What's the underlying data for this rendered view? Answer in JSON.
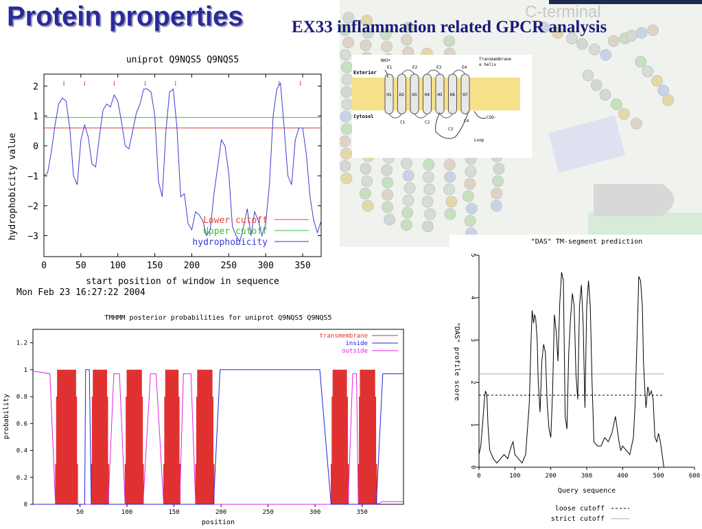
{
  "slide": {
    "title": "Protein properties",
    "subtitle": "EX33 inflammation related GPCR analysis"
  },
  "colors": {
    "title": "#2a2a9c",
    "subtitle": "#1a1a7a",
    "lower_cutoff": "#e04040",
    "upper_cutoff": "#30c030",
    "hydrophobicity": "#3a3ad0",
    "transmembrane": "#e03030",
    "inside": "#2020e0",
    "outside": "#e020e0"
  },
  "background": {
    "diagram_labels": [
      "NH3+",
      "E1",
      "E2",
      "E3",
      "E4",
      "Transmembrane",
      "α helix",
      "Exterior",
      "Cytosol",
      "H1",
      "H2",
      "H3",
      "H4",
      "H5",
      "H6",
      "H7",
      "C1",
      "C2",
      "C3",
      "C4",
      "COO-",
      "Loop"
    ],
    "faded_label": "C-terminal"
  },
  "chart_data": [
    {
      "type": "line",
      "title": "uniprot Q9NQS5 Q9NQS5",
      "xlabel": "start position of window in sequence",
      "ylabel": "hydrophobicity value",
      "xlim": [
        0,
        375
      ],
      "ylim": [
        -3.7,
        2.4
      ],
      "xticks": [
        "0",
        "50",
        "100",
        "150",
        "200",
        "250",
        "300",
        "350"
      ],
      "yticks": [
        "2",
        "1",
        "0",
        "−1",
        "−2",
        "−3"
      ],
      "footer": "Mon Feb 23 16:27:22 2004",
      "legend": [
        "Lower cutoff",
        "Upper cutoff",
        "hydrophobicity"
      ],
      "legend_position": "bottom-right",
      "cutoffs": {
        "lower": 0.6,
        "upper": 0.95
      },
      "tm_markers_x": [
        27,
        55,
        95,
        137,
        178,
        318,
        347
      ],
      "series": [
        {
          "name": "hydrophobicity",
          "x": [
            0,
            5,
            10,
            15,
            20,
            25,
            30,
            35,
            40,
            45,
            50,
            55,
            60,
            65,
            70,
            75,
            80,
            85,
            90,
            95,
            100,
            105,
            110,
            115,
            120,
            125,
            130,
            135,
            140,
            145,
            150,
            155,
            160,
            165,
            170,
            175,
            180,
            185,
            190,
            195,
            200,
            205,
            210,
            215,
            220,
            225,
            230,
            235,
            240,
            245,
            250,
            255,
            260,
            265,
            270,
            275,
            280,
            285,
            290,
            295,
            300,
            305,
            310,
            315,
            320,
            325,
            330,
            335,
            340,
            345,
            350,
            355,
            360,
            365,
            370,
            375
          ],
          "y": [
            -1.0,
            -0.9,
            -0.2,
            0.7,
            1.4,
            1.6,
            1.5,
            0.6,
            -1.0,
            -1.3,
            0.2,
            0.7,
            0.3,
            -0.6,
            -0.7,
            0.3,
            1.2,
            1.4,
            1.3,
            1.7,
            1.5,
            0.8,
            0.0,
            -0.1,
            0.5,
            1.1,
            1.4,
            1.9,
            1.9,
            1.8,
            1.0,
            -1.2,
            -1.7,
            0.5,
            1.8,
            1.9,
            0.6,
            -1.7,
            -1.6,
            -2.6,
            -2.8,
            -2.2,
            -2.3,
            -2.5,
            -3.0,
            -2.8,
            -1.6,
            -0.7,
            0.2,
            0.0,
            -0.9,
            -2.7,
            -3.0,
            -3.2,
            -2.7,
            -2.1,
            -3.0,
            -2.2,
            -2.5,
            -3.0,
            -2.6,
            -1.3,
            1.0,
            1.9,
            2.1,
            0.6,
            -1.0,
            -1.3,
            0.2,
            0.6,
            0.6,
            -0.3,
            -1.7,
            -2.5,
            -2.9,
            -2.5
          ]
        }
      ]
    },
    {
      "type": "line",
      "title": "TMHMM posterior probabilities for uniprot Q9NQS5 Q9NQS5",
      "xlabel": "position",
      "ylabel": "probability",
      "xlim": [
        0,
        394
      ],
      "ylim": [
        0,
        1.3
      ],
      "xticks": [
        "50",
        "100",
        "150",
        "200",
        "250",
        "300",
        "350"
      ],
      "yticks": [
        "0",
        "0.2",
        "0.4",
        "0.6",
        "0.8",
        "1",
        "1.2"
      ],
      "legend": [
        "transmembrane",
        "inside",
        "outside"
      ],
      "legend_position": "top-right",
      "tm_segments": [
        [
          24,
          47
        ],
        [
          62,
          80
        ],
        [
          98,
          117
        ],
        [
          139,
          156
        ],
        [
          173,
          192
        ],
        [
          317,
          335
        ],
        [
          346,
          365
        ]
      ],
      "inside_x": [
        0,
        18,
        24,
        47,
        55,
        56,
        60,
        62,
        80,
        86,
        92,
        98,
        117,
        125,
        131,
        139,
        156,
        160,
        168,
        173,
        192,
        199,
        305,
        317,
        335,
        340,
        344,
        346,
        365,
        372,
        394
      ],
      "inside_y": [
        0,
        0,
        0,
        0,
        0,
        1,
        1,
        0,
        0,
        0,
        0,
        0,
        0,
        0,
        0,
        0,
        0,
        0,
        0,
        0,
        0,
        1,
        1,
        0,
        0,
        0,
        0,
        0,
        0,
        0.97,
        0.97
      ],
      "outside_x": [
        0,
        18,
        24,
        47,
        55,
        56,
        60,
        62,
        80,
        86,
        92,
        98,
        117,
        125,
        131,
        139,
        156,
        160,
        168,
        173,
        192,
        199,
        305,
        317,
        335,
        340,
        344,
        346,
        365,
        372,
        394
      ],
      "outside_y": [
        0.99,
        0.97,
        0,
        0,
        0,
        0,
        0,
        0,
        0,
        0.97,
        0.97,
        0,
        0,
        0.97,
        0.97,
        0,
        0,
        0.97,
        0.97,
        0,
        0,
        0,
        0,
        0,
        0,
        0.97,
        0.97,
        0,
        0,
        0.02,
        0.02
      ]
    },
    {
      "type": "line",
      "title": "\"DAS\" TM-segment prediction",
      "xlabel": "Query sequence",
      "ylabel": "\"DAS\" profile score",
      "xlim": [
        0,
        600
      ],
      "ylim": [
        0,
        5
      ],
      "xticks": [
        "0",
        "100",
        "200",
        "300",
        "400",
        "500",
        "600"
      ],
      "yticks": [
        "0",
        "1",
        "2",
        "3",
        "4",
        "5"
      ],
      "legend": [
        "loose cutoff",
        "strict cutoff"
      ],
      "legend_position": "bottom",
      "cutoffs": {
        "loose": 1.7,
        "strict": 2.2
      },
      "series": [
        {
          "name": "DAS profile score",
          "x": [
            0,
            5,
            10,
            15,
            18,
            22,
            25,
            30,
            40,
            50,
            60,
            70,
            80,
            90,
            95,
            100,
            110,
            120,
            130,
            140,
            145,
            148,
            152,
            155,
            158,
            162,
            165,
            170,
            175,
            180,
            185,
            190,
            195,
            200,
            205,
            210,
            215,
            220,
            225,
            230,
            235,
            240,
            245,
            250,
            255,
            260,
            265,
            270,
            275,
            280,
            285,
            290,
            295,
            300,
            305,
            310,
            315,
            320,
            330,
            340,
            350,
            360,
            370,
            375,
            380,
            385,
            390,
            395,
            400,
            410,
            420,
            430,
            435,
            440,
            445,
            450,
            455,
            458,
            462,
            465,
            470,
            475,
            480,
            485,
            490,
            495,
            500,
            505,
            510,
            515
          ],
          "y": [
            0.3,
            0.5,
            1.0,
            1.6,
            1.8,
            1.7,
            1.0,
            0.4,
            0.2,
            0.1,
            0.2,
            0.3,
            0.2,
            0.5,
            0.6,
            0.3,
            0.2,
            0.1,
            0.3,
            1.5,
            3.0,
            3.7,
            3.4,
            3.6,
            3.5,
            3.0,
            2.0,
            1.3,
            2.5,
            2.9,
            2.7,
            1.5,
            0.9,
            0.7,
            1.8,
            3.6,
            3.2,
            2.5,
            3.9,
            4.6,
            4.4,
            1.2,
            0.9,
            2.7,
            3.5,
            4.1,
            3.8,
            2.2,
            1.6,
            3.8,
            4.3,
            3.4,
            1.4,
            3.8,
            4.4,
            3.8,
            2.0,
            0.6,
            0.5,
            0.5,
            0.7,
            0.6,
            0.8,
            1.0,
            1.2,
            0.9,
            0.6,
            0.4,
            0.5,
            0.4,
            0.3,
            0.7,
            1.5,
            3.0,
            4.5,
            4.4,
            3.8,
            2.5,
            1.8,
            1.4,
            1.9,
            1.7,
            1.8,
            1.6,
            0.7,
            0.6,
            0.8,
            0.6,
            0.3,
            0.0
          ]
        }
      ]
    }
  ]
}
